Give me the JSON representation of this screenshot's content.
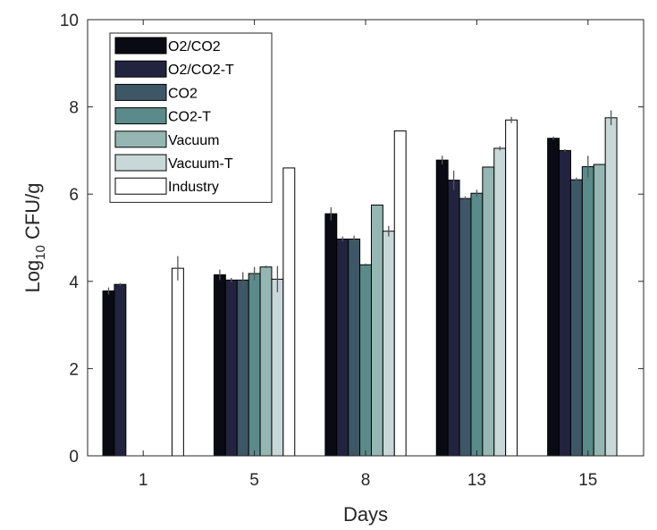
{
  "chart_data": {
    "type": "bar",
    "xlabel": "Days",
    "ylabel": {
      "prefix": "Log",
      "subscript": "10",
      "suffix": " CFU/g"
    },
    "ylim": [
      0,
      10
    ],
    "yticks": [
      0,
      2,
      4,
      6,
      8,
      10
    ],
    "categories": [
      "1",
      "5",
      "8",
      "13",
      "15"
    ],
    "legend_position": "top-left",
    "grid": false,
    "series": [
      {
        "name": "O2/CO2",
        "color": "#0a0a14",
        "values": [
          3.78,
          4.15,
          5.55,
          6.78,
          7.28
        ],
        "errors": [
          0.08,
          0.12,
          0.15,
          0.1,
          0.04
        ]
      },
      {
        "name": "O2/CO2-T",
        "color": "#22243f",
        "values": [
          3.93,
          4.03,
          4.97,
          6.32,
          7.0
        ],
        "errors": [
          0.03,
          0.05,
          0.06,
          0.22,
          0.03
        ]
      },
      {
        "name": "CO2",
        "color": "#3e5767",
        "values": [
          null,
          4.03,
          4.97,
          5.9,
          6.33
        ],
        "errors": [
          null,
          0.18,
          0.08,
          0.05,
          0.05
        ]
      },
      {
        "name": "CO2-T",
        "color": "#5a8b8a",
        "values": [
          null,
          4.18,
          4.38,
          6.02,
          6.63
        ],
        "errors": [
          null,
          0.15,
          0.03,
          0.08,
          0.25
        ]
      },
      {
        "name": "Vacuum",
        "color": "#95b6b2",
        "values": [
          null,
          4.33,
          5.75,
          6.62,
          6.68
        ],
        "errors": [
          null,
          0.03,
          null,
          null,
          null
        ]
      },
      {
        "name": "Vacuum-T",
        "color": "#c8d8d8",
        "values": [
          null,
          4.05,
          5.15,
          7.05,
          7.75
        ],
        "errors": [
          null,
          0.3,
          0.12,
          0.05,
          0.17
        ]
      },
      {
        "name": "Industry",
        "color": "#ffffff",
        "values": [
          4.3,
          6.6,
          7.45,
          7.7,
          null
        ],
        "errors": [
          0.28,
          null,
          null,
          0.07,
          null
        ]
      }
    ]
  }
}
